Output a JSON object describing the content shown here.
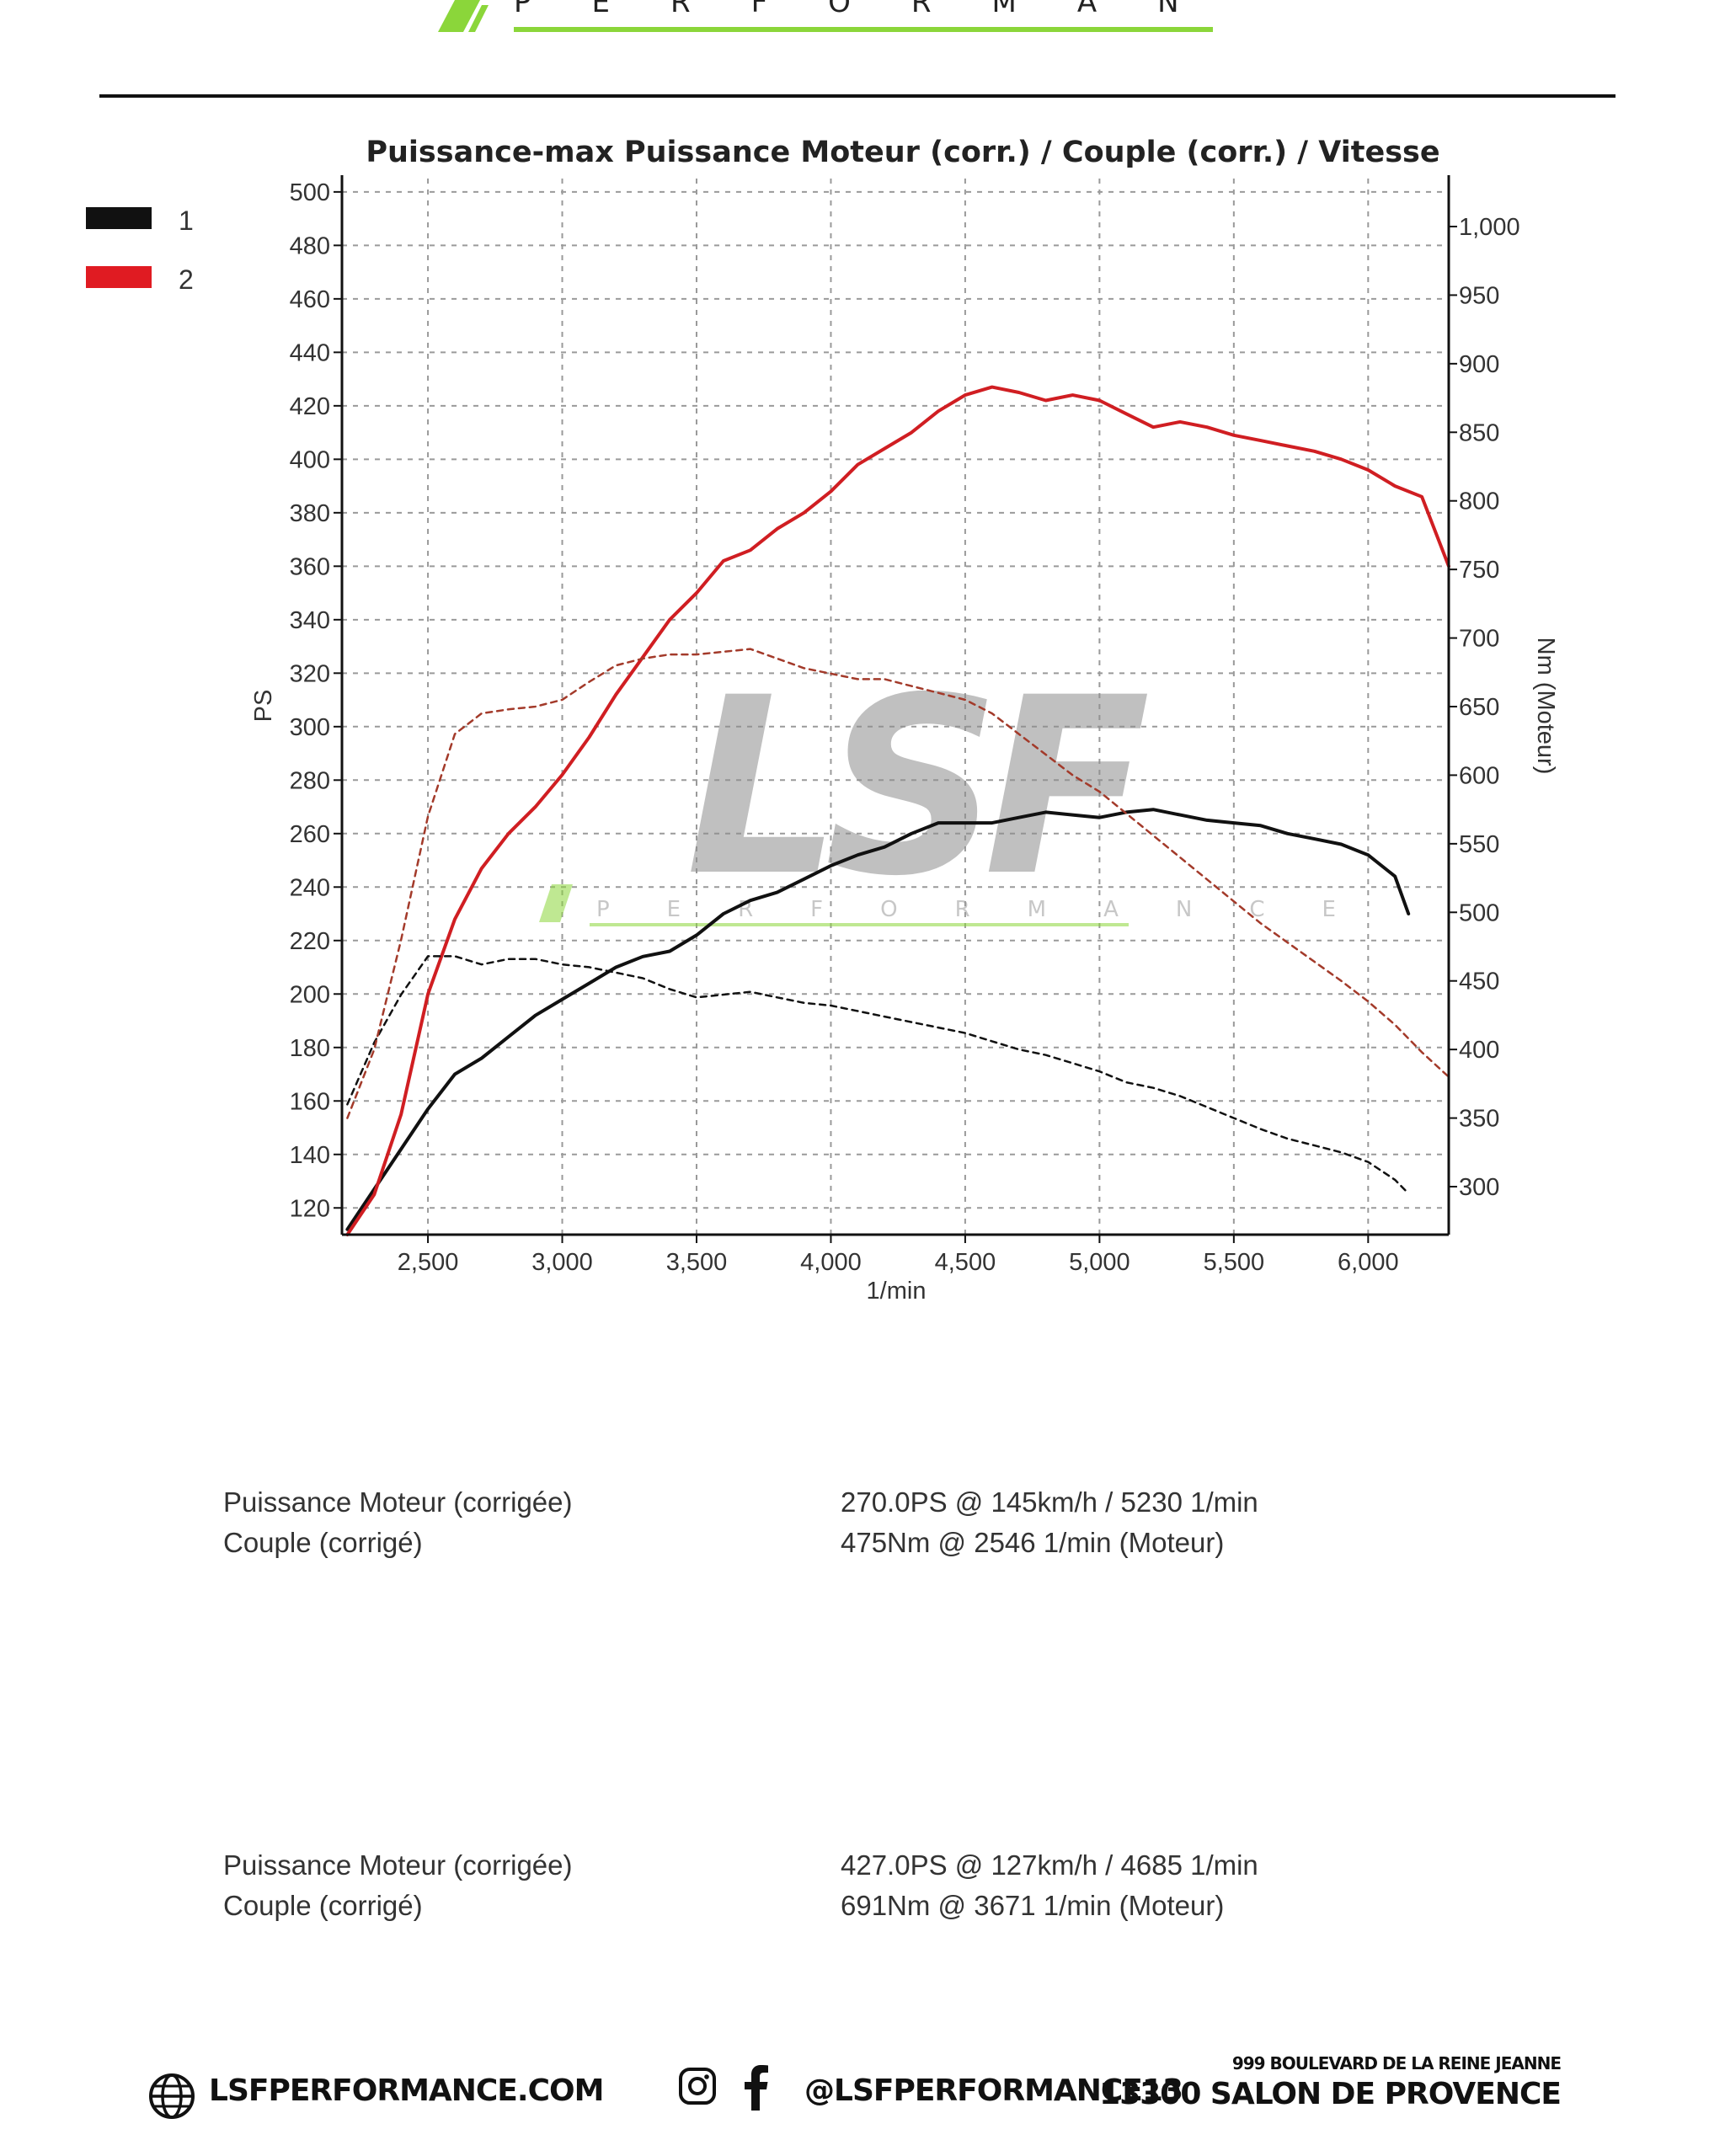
{
  "brand": {
    "top_logo_word": "PERFORMANCE",
    "watermark_main": "LSF",
    "watermark_sub": "PERFORMANCE",
    "accent": "#8bd63a"
  },
  "legend": [
    {
      "label": "1",
      "color": "#111111"
    },
    {
      "label": "2",
      "color": "#d01e22"
    }
  ],
  "chart_data": {
    "type": "line",
    "title": "Puissance-max Puissance Moteur (corr.) / Couple (corr.) / Vitesse",
    "xlabel": "1/min",
    "ylabel_left": "PS",
    "ylabel_right": "Nm (Moteur)",
    "xlim": [
      2180,
      6300
    ],
    "ylim_left": [
      110,
      505
    ],
    "ylim_right": [
      265,
      1035
    ],
    "x_ticks": [
      2500,
      3000,
      3500,
      4000,
      4500,
      5000,
      5500,
      6000
    ],
    "x_tick_labels": [
      "2,500",
      "3,000",
      "3,500",
      "4,000",
      "4,500",
      "5,000",
      "5,500",
      "6,000"
    ],
    "y_ticks_left": [
      120,
      140,
      160,
      180,
      200,
      220,
      240,
      260,
      280,
      300,
      320,
      340,
      360,
      380,
      400,
      420,
      440,
      460,
      480,
      500
    ],
    "y_ticks_right": [
      300,
      350,
      400,
      450,
      500,
      550,
      600,
      650,
      700,
      750,
      800,
      850,
      900,
      950,
      1000
    ],
    "y_tick_labels_right": [
      "300",
      "350",
      "400",
      "450",
      "500",
      "550",
      "600",
      "650",
      "700",
      "750",
      "800",
      "850",
      "900",
      "950",
      "1,000"
    ],
    "grid": true,
    "series": [
      {
        "name": "1",
        "axis": "left",
        "style": "solid",
        "color": "#111111",
        "x": [
          2200,
          2300,
          2400,
          2500,
          2600,
          2700,
          2800,
          2900,
          3000,
          3100,
          3200,
          3300,
          3400,
          3500,
          3600,
          3700,
          3800,
          3900,
          4000,
          4100,
          4200,
          4300,
          4400,
          4500,
          4600,
          4700,
          4800,
          4900,
          5000,
          5100,
          5200,
          5300,
          5400,
          5500,
          5600,
          5700,
          5800,
          5900,
          6000,
          6100,
          6150
        ],
        "y": [
          112,
          127,
          142,
          157,
          170,
          176,
          184,
          192,
          198,
          204,
          210,
          214,
          216,
          222,
          230,
          235,
          238,
          243,
          248,
          252,
          255,
          260,
          264,
          264,
          264,
          266,
          268,
          267,
          266,
          268,
          269,
          267,
          265,
          264,
          263,
          260,
          258,
          256,
          252,
          244,
          230
        ]
      },
      {
        "name": "2",
        "axis": "left",
        "style": "solid",
        "color": "#d01e22",
        "x": [
          2200,
          2300,
          2400,
          2500,
          2600,
          2700,
          2800,
          2900,
          3000,
          3100,
          3200,
          3300,
          3400,
          3500,
          3600,
          3700,
          3800,
          3900,
          4000,
          4100,
          4200,
          4300,
          4400,
          4500,
          4600,
          4700,
          4800,
          4900,
          5000,
          5100,
          5200,
          5300,
          5400,
          5500,
          5600,
          5700,
          5800,
          5900,
          6000,
          6100,
          6200,
          6300
        ],
        "y": [
          110,
          125,
          155,
          200,
          228,
          247,
          260,
          270,
          282,
          296,
          312,
          326,
          340,
          350,
          362,
          366,
          374,
          380,
          388,
          398,
          404,
          410,
          418,
          424,
          427,
          425,
          422,
          424,
          422,
          417,
          412,
          414,
          412,
          409,
          407,
          405,
          403,
          400,
          396,
          390,
          386,
          360
        ]
      },
      {
        "name": "1",
        "axis": "right",
        "style": "dashed",
        "color": "#111111",
        "x": [
          2200,
          2300,
          2400,
          2500,
          2600,
          2700,
          2800,
          2900,
          3000,
          3100,
          3200,
          3300,
          3400,
          3500,
          3600,
          3700,
          3800,
          3900,
          4000,
          4100,
          4200,
          4300,
          4400,
          4500,
          4600,
          4700,
          4800,
          4900,
          5000,
          5100,
          5200,
          5300,
          5400,
          5500,
          5600,
          5700,
          5800,
          5900,
          6000,
          6100,
          6150
        ],
        "y": [
          360,
          405,
          440,
          468,
          468,
          462,
          466,
          466,
          462,
          460,
          456,
          452,
          444,
          438,
          440,
          442,
          438,
          434,
          432,
          428,
          424,
          420,
          416,
          412,
          406,
          400,
          396,
          390,
          384,
          376,
          372,
          366,
          358,
          350,
          342,
          335,
          330,
          325,
          318,
          305,
          295
        ]
      },
      {
        "name": "2",
        "axis": "right",
        "style": "dashed",
        "color": "#a33a2a",
        "x": [
          2200,
          2300,
          2400,
          2500,
          2600,
          2700,
          2800,
          2900,
          3000,
          3100,
          3200,
          3300,
          3400,
          3500,
          3600,
          3700,
          3800,
          3900,
          4000,
          4100,
          4200,
          4300,
          4400,
          4500,
          4600,
          4700,
          4800,
          4900,
          5000,
          5100,
          5200,
          5300,
          5400,
          5500,
          5600,
          5700,
          5800,
          5900,
          6000,
          6100,
          6200,
          6300
        ],
        "y": [
          350,
          400,
          480,
          570,
          630,
          645,
          648,
          650,
          655,
          668,
          680,
          685,
          688,
          688,
          690,
          692,
          685,
          678,
          674,
          670,
          670,
          665,
          660,
          655,
          645,
          630,
          615,
          600,
          588,
          572,
          556,
          540,
          524,
          508,
          492,
          478,
          464,
          450,
          435,
          418,
          398,
          380
        ]
      }
    ]
  },
  "results": [
    {
      "rows": [
        {
          "label": "Puissance Moteur (corrigée)",
          "value": "270.0PS @ 145km/h / 5230 1/min"
        },
        {
          "label": "Couple (corrigé)",
          "value": "475Nm @ 2546 1/min (Moteur)"
        }
      ]
    },
    {
      "rows": [
        {
          "label": "Puissance Moteur (corrigée)",
          "value": "427.0PS @ 127km/h / 4685 1/min"
        },
        {
          "label": "Couple (corrigé)",
          "value": "691Nm @ 3671 1/min (Moteur)"
        }
      ]
    }
  ],
  "footer": {
    "website": "LSFPERFORMANCE.COM",
    "website_icon": "globe-icon",
    "social_icons": [
      "instagram-icon",
      "facebook-icon"
    ],
    "social_handle": "@LSFPERFORMANCE13",
    "address_line1": "999 BOULEVARD DE LA REINE JEANNE",
    "address_line2": "13300 SALON DE PROVENCE"
  }
}
